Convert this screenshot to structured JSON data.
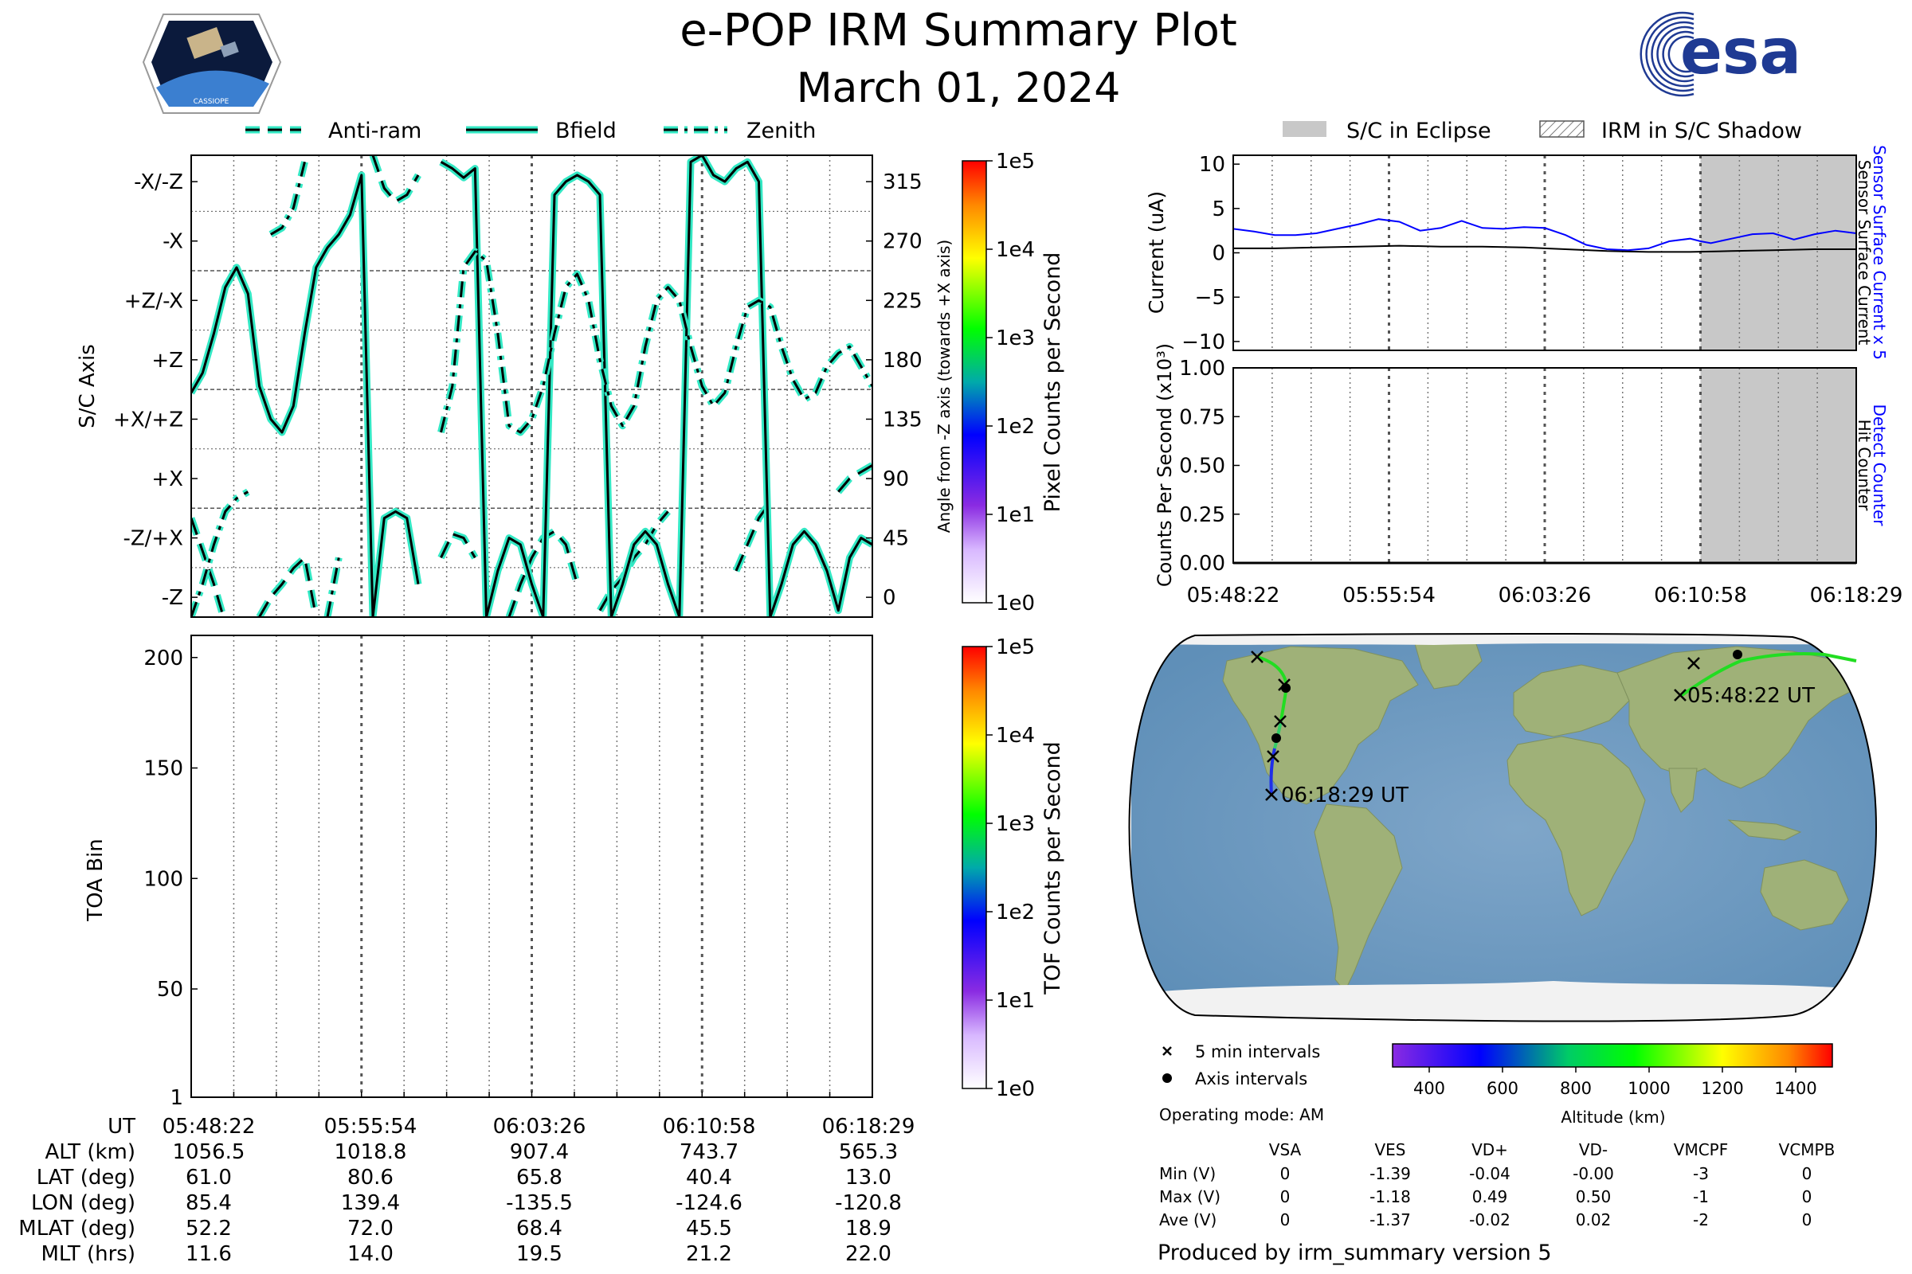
{
  "header": {
    "title": "e-POP IRM Summary Plot",
    "date": "March 01, 2024",
    "left_logo": {
      "text": "CASSIOPE",
      "icon": "cassiope-satellite-icon"
    },
    "right_logo": {
      "text": "esa",
      "icon": "esa-logo-icon"
    }
  },
  "colors": {
    "trace": "#000000",
    "trace_halo": "#33e8c4",
    "sensor_current": "#0000ff",
    "eclipse": "#c8c8c8",
    "grid": "#666666"
  },
  "legend_top": {
    "items": [
      {
        "label": "Anti-ram",
        "style": "dashed"
      },
      {
        "label": "Bfield",
        "style": "solid"
      },
      {
        "label": "Zenith",
        "style": "dashdot"
      }
    ]
  },
  "legend_right": {
    "eclipse_label": "S/C in Eclipse",
    "shadow_label": "IRM in S/C Shadow"
  },
  "chart_data": [
    {
      "id": "axis-plot",
      "type": "line",
      "ylabel": "S/C Axis",
      "yticks_left": [
        "-X/-Z",
        "-X",
        "+Z/-X",
        "+Z",
        "+X/+Z",
        "+X",
        "-Z/+X",
        "-Z"
      ],
      "ylabel_right": "Angle from -Z axis (towards +X axis)",
      "yticks_right": [
        "315",
        "270",
        "225",
        "180",
        "135",
        "90",
        "45",
        "0"
      ],
      "ylim": [
        -15,
        335
      ],
      "colorbar": {
        "label": "Pixel Counts per Second",
        "ticks": [
          "1e5",
          "1e4",
          "1e3",
          "1e2",
          "1e1",
          "1e0"
        ]
      },
      "series": [
        {
          "name": "Anti-ram",
          "style": "dashed",
          "x": [
            0,
            0.5,
            1,
            1.5,
            2,
            2.5,
            3,
            3.5,
            4,
            4.5,
            5,
            5.5,
            6,
            6.5,
            7,
            7.5,
            8,
            8.5,
            9,
            9.5,
            10,
            10.5,
            11,
            11.5,
            12,
            12.5,
            13,
            13.5,
            14,
            14.5,
            15,
            15.5,
            16,
            16.5,
            17,
            17.5,
            18,
            18.5,
            19,
            19.5,
            20,
            20.5,
            21,
            21.5,
            22,
            22.5,
            23,
            23.5,
            24,
            24.5,
            25,
            25.5,
            26,
            26.5,
            27,
            27.5,
            28,
            28.5,
            29,
            29.5,
            30
          ],
          "y": [
            60,
            35,
            10,
            -20,
            null,
            null,
            -15,
            0,
            10,
            22,
            30,
            -15,
            null,
            null,
            null,
            null,
            335,
            310,
            300,
            305,
            320,
            null,
            30,
            48,
            45,
            30,
            null,
            null,
            -15,
            10,
            30,
            45,
            50,
            40,
            10,
            null,
            -10,
            5,
            15,
            30,
            40,
            55,
            65,
            null,
            null,
            -15,
            null,
            null,
            20,
            40,
            60,
            72,
            null,
            null,
            null,
            null,
            null,
            80,
            90,
            95,
            100
          ]
        },
        {
          "name": "Bfield",
          "style": "solid",
          "x": [
            0,
            0.5,
            1,
            1.5,
            2,
            2.5,
            3,
            3.5,
            4,
            4.5,
            5,
            5.5,
            6,
            6.5,
            7,
            7.5,
            8,
            8.5,
            9,
            9.5,
            10,
            10.5,
            11,
            11.5,
            12,
            12.5,
            13,
            13.5,
            14,
            14.5,
            15,
            15.5,
            16,
            16.5,
            17,
            17.5,
            18,
            18.5,
            19,
            19.5,
            20,
            20.5,
            21,
            21.5,
            22,
            22.5,
            23,
            23.5,
            24,
            24.5,
            25,
            25.5,
            26,
            26.5,
            27,
            27.5,
            28,
            28.5,
            29,
            29.5,
            30
          ],
          "y": [
            155,
            170,
            200,
            235,
            250,
            230,
            160,
            135,
            125,
            145,
            200,
            250,
            265,
            275,
            290,
            320,
            -15,
            60,
            65,
            60,
            10,
            null,
            330,
            325,
            318,
            325,
            -15,
            20,
            45,
            40,
            10,
            -15,
            305,
            315,
            320,
            315,
            305,
            -15,
            10,
            40,
            50,
            40,
            10,
            -15,
            330,
            335,
            320,
            315,
            325,
            330,
            315,
            -15,
            10,
            40,
            50,
            40,
            20,
            -10,
            30,
            45,
            40
          ]
        },
        {
          "name": "Zenith",
          "style": "dashdot",
          "x": [
            0,
            0.5,
            1,
            1.5,
            2,
            2.5,
            3,
            3.5,
            4,
            4.5,
            5,
            5.5,
            6,
            6.5,
            7,
            7.5,
            8,
            8.5,
            9,
            9.5,
            10,
            10.5,
            11,
            11.5,
            12,
            12.5,
            13,
            13.5,
            14,
            14.5,
            15,
            15.5,
            16,
            16.5,
            17,
            17.5,
            18,
            18.5,
            19,
            19.5,
            20,
            20.5,
            21,
            21.5,
            22,
            22.5,
            23,
            23.5,
            24,
            24.5,
            25,
            25.5,
            26,
            26.5,
            27,
            27.5,
            28,
            28.5,
            29,
            29.5,
            30
          ],
          "y": [
            -15,
            10,
            40,
            65,
            75,
            80,
            null,
            275,
            280,
            295,
            330,
            null,
            -15,
            30,
            null,
            null,
            null,
            null,
            null,
            null,
            null,
            null,
            125,
            160,
            250,
            262,
            255,
            200,
            130,
            125,
            135,
            160,
            200,
            235,
            245,
            225,
            180,
            145,
            130,
            145,
            190,
            225,
            235,
            225,
            190,
            160,
            145,
            155,
            190,
            220,
            225,
            220,
            190,
            165,
            150,
            155,
            175,
            185,
            190,
            175,
            160
          ]
        }
      ]
    },
    {
      "id": "toa-plot",
      "type": "heatmap",
      "ylabel": "TOA Bin",
      "yticks": [
        "200",
        "150",
        "100",
        "50",
        "1"
      ],
      "ylim": [
        1,
        210
      ],
      "colorbar": {
        "label": "TOF Counts per Second",
        "ticks": [
          "1e5",
          "1e4",
          "1e3",
          "1e2",
          "1e1",
          "1e0"
        ]
      }
    },
    {
      "id": "current-plot",
      "type": "line",
      "ylabel": "Current (uA)",
      "yticks": [
        "10",
        "5",
        "0",
        "−5",
        "−10"
      ],
      "ylim": [
        -11,
        11
      ],
      "right_labels": [
        "Sensor Surface Current x 5",
        "Sensor Surface Current"
      ],
      "eclipse_start": 22.5,
      "series": [
        {
          "name": "Sensor Surface Current x 5",
          "color": "#0000ff",
          "x": [
            0,
            1,
            2,
            3,
            4,
            5,
            6,
            7,
            8,
            9,
            10,
            11,
            12,
            13,
            14,
            15,
            16,
            17,
            18,
            19,
            20,
            21,
            22,
            22.5,
            23,
            24,
            25,
            26,
            27,
            28,
            29,
            30
          ],
          "y": [
            2.7,
            2.4,
            2.0,
            2.0,
            2.2,
            2.7,
            3.2,
            3.8,
            3.5,
            2.5,
            2.8,
            3.6,
            2.8,
            2.7,
            2.9,
            2.8,
            2.0,
            0.9,
            0.4,
            0.3,
            0.5,
            1.3,
            1.6,
            1.3,
            1.1,
            1.6,
            2.1,
            2.2,
            1.5,
            2.1,
            2.5,
            2.2
          ]
        },
        {
          "name": "Sensor Surface Current",
          "color": "#000000",
          "x": [
            0,
            2,
            4,
            6,
            8,
            10,
            12,
            14,
            16,
            18,
            20,
            22,
            24,
            26,
            28,
            30
          ],
          "y": [
            0.5,
            0.5,
            0.6,
            0.7,
            0.8,
            0.7,
            0.7,
            0.6,
            0.4,
            0.2,
            0.1,
            0.1,
            0.2,
            0.3,
            0.4,
            0.4
          ]
        }
      ]
    },
    {
      "id": "counts-plot",
      "type": "line",
      "ylabel": "Counts Per Second (x10³)",
      "yticks": [
        "1.00",
        "0.75",
        "0.50",
        "0.25",
        "0.00"
      ],
      "ylim": [
        0,
        1
      ],
      "right_labels": [
        "Detect Counter",
        "Hit Counter"
      ],
      "xticks": [
        "05:48:22",
        "05:55:54",
        "06:03:26",
        "06:10:58",
        "06:18:29"
      ],
      "series": [
        {
          "name": "Detect Counter",
          "color": "#0000ff",
          "x": [
            0,
            30
          ],
          "y": [
            0,
            0
          ]
        },
        {
          "name": "Hit Counter",
          "color": "#000000",
          "x": [
            0,
            30
          ],
          "y": [
            0,
            0
          ]
        }
      ]
    }
  ],
  "ephemeris": {
    "rows": [
      {
        "label": "UT",
        "values": [
          "05:48:22",
          "05:55:54",
          "06:03:26",
          "06:10:58",
          "06:18:29"
        ]
      },
      {
        "label": "ALT (km)",
        "values": [
          "1056.5",
          "1018.8",
          "907.4",
          "743.7",
          "565.3"
        ]
      },
      {
        "label": "LAT (deg)",
        "values": [
          "61.0",
          "80.6",
          "65.8",
          "40.4",
          "13.0"
        ]
      },
      {
        "label": "LON (deg)",
        "values": [
          "85.4",
          "139.4",
          "-135.5",
          "-124.6",
          "-120.8"
        ]
      },
      {
        "label": "MLAT (deg)",
        "values": [
          "52.2",
          "72.0",
          "68.4",
          "45.5",
          "18.9"
        ]
      },
      {
        "label": "MLT (hrs)",
        "values": [
          "11.6",
          "14.0",
          "19.5",
          "21.2",
          "22.0"
        ]
      }
    ]
  },
  "map": {
    "start_label": "05:48:22 UT",
    "end_label": "06:18:29 UT",
    "legend_interval": "5 min intervals",
    "legend_axis": "Axis intervals",
    "operating_mode": "Operating mode: AM",
    "altitude_colorbar": {
      "label": "Altitude (km)",
      "ticks": [
        "400",
        "600",
        "800",
        "1000",
        "1200",
        "1400"
      ]
    }
  },
  "voltage_table": {
    "columns": [
      "",
      "VSA",
      "VES",
      "VD+",
      "VD-",
      "VMCPF",
      "VCMPB"
    ],
    "rows": [
      [
        "Min (V)",
        "0",
        "-1.39",
        "-0.04",
        "-0.00",
        "-3",
        "0"
      ],
      [
        "Max (V)",
        "0",
        "-1.18",
        "0.49",
        "0.50",
        "-1",
        "0"
      ],
      [
        "Ave (V)",
        "0",
        "-1.37",
        "-0.02",
        "0.02",
        "-2",
        "0"
      ]
    ]
  },
  "footer": {
    "produced_by": "Produced by irm_summary version 5"
  }
}
